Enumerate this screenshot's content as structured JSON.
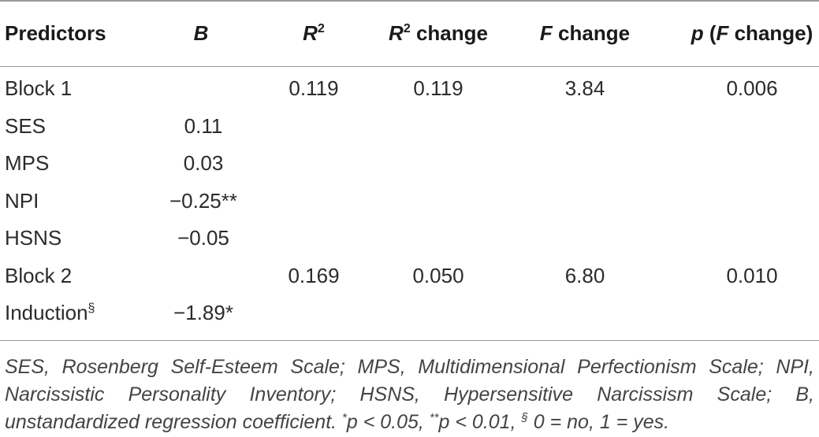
{
  "table": {
    "header": [
      [
        "Predictors"
      ],
      [
        "B"
      ],
      [
        "R",
        "2"
      ],
      [
        "R",
        "2",
        " change"
      ],
      [
        "F",
        " change"
      ],
      [
        "p",
        " (",
        "F",
        " change)"
      ]
    ],
    "rows": [
      [
        [
          "Block 1"
        ],
        null,
        "0.119",
        "0.119",
        "3.84",
        "0.006"
      ],
      [
        [
          "SES"
        ],
        "0.11",
        null,
        null,
        null,
        null
      ],
      [
        [
          "MPS"
        ],
        "0.03",
        null,
        null,
        null,
        null
      ],
      [
        [
          "NPI"
        ],
        "−0.25**",
        null,
        null,
        null,
        null
      ],
      [
        [
          "HSNS"
        ],
        "−0.05",
        null,
        null,
        null,
        null
      ],
      [
        [
          "Block 2"
        ],
        null,
        "0.169",
        "0.050",
        "6.80",
        "0.010"
      ],
      [
        [
          "Induction",
          "§"
        ],
        "−1.89*",
        null,
        null,
        null,
        null
      ]
    ],
    "footnote": [
      "SES, Rosenberg Self-Esteem Scale; MPS, Multidimensional Perfectionism Scale; NPI, Narcissistic Personality Inventory; HSNS, Hypersensitive Narcissism Scale; B, unstandardized regression coefficient. ",
      "*",
      "p < 0.05, ",
      "**",
      "p < 0.01, ",
      "§",
      " 0 = no, 1 = yes."
    ]
  }
}
